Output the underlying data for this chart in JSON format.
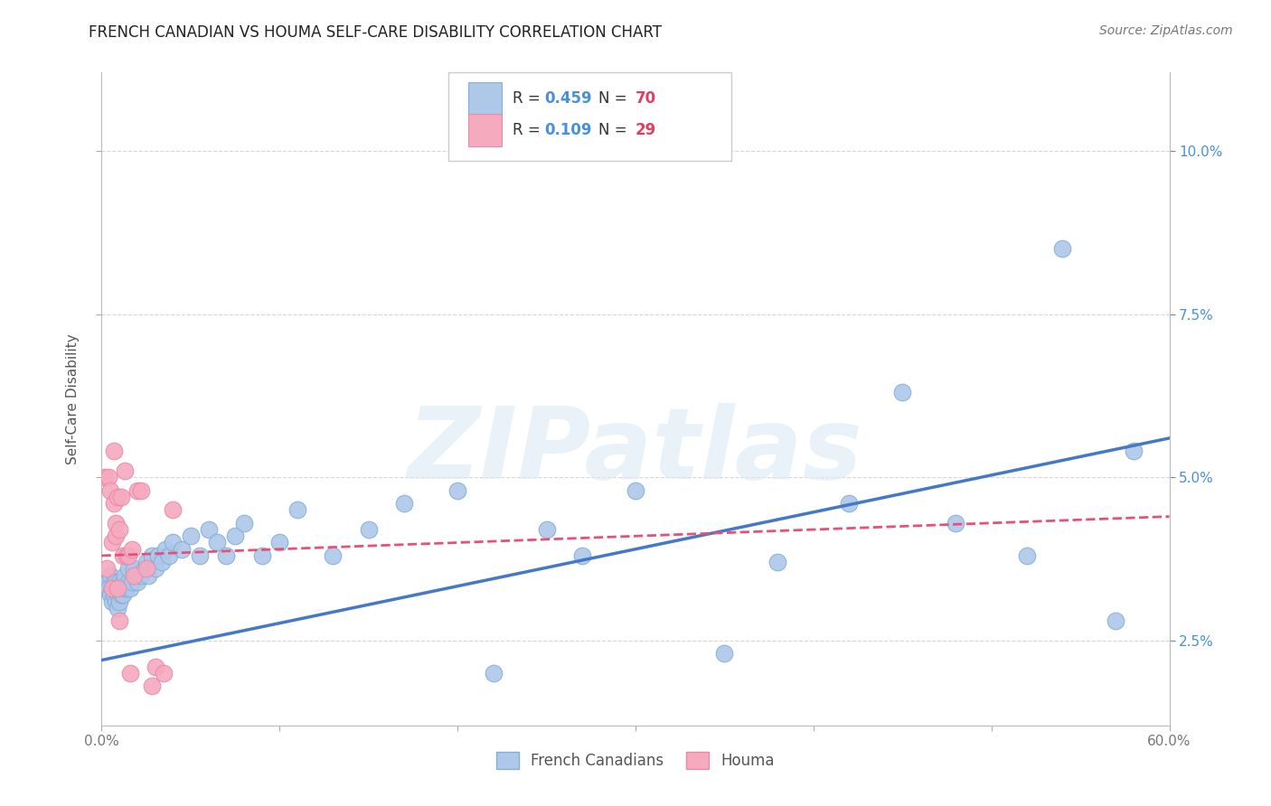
{
  "title": "FRENCH CANADIAN VS HOUMA SELF-CARE DISABILITY CORRELATION CHART",
  "source": "Source: ZipAtlas.com",
  "ylabel": "Self-Care Disability",
  "xlim": [
    0.0,
    0.6
  ],
  "ylim": [
    0.012,
    0.112
  ],
  "xticks": [
    0.0,
    0.1,
    0.2,
    0.3,
    0.4,
    0.5,
    0.6
  ],
  "xticklabels": [
    "0.0%",
    "",
    "",
    "",
    "",
    "",
    "60.0%"
  ],
  "yticks": [
    0.025,
    0.05,
    0.075,
    0.1
  ],
  "yticklabels": [
    "2.5%",
    "5.0%",
    "7.5%",
    "10.0%"
  ],
  "blue_R": "0.459",
  "blue_N": "70",
  "pink_R": "0.109",
  "pink_N": "29",
  "blue_label": "French Canadians",
  "pink_label": "Houma",
  "blue_color": "#adc8e8",
  "pink_color": "#f5aabe",
  "blue_edge": "#85afd8",
  "pink_edge": "#e88aaa",
  "blue_line_color": "#4478c8",
  "pink_line_color": "#e8507a",
  "blue_scatter_x": [
    0.002,
    0.003,
    0.004,
    0.005,
    0.005,
    0.006,
    0.006,
    0.007,
    0.007,
    0.008,
    0.008,
    0.008,
    0.009,
    0.009,
    0.01,
    0.01,
    0.01,
    0.011,
    0.011,
    0.012,
    0.012,
    0.013,
    0.013,
    0.014,
    0.015,
    0.015,
    0.016,
    0.017,
    0.018,
    0.019,
    0.02,
    0.022,
    0.024,
    0.025,
    0.026,
    0.028,
    0.03,
    0.032,
    0.034,
    0.036,
    0.038,
    0.04,
    0.045,
    0.05,
    0.055,
    0.06,
    0.065,
    0.07,
    0.075,
    0.08,
    0.09,
    0.1,
    0.11,
    0.13,
    0.15,
    0.17,
    0.2,
    0.22,
    0.25,
    0.27,
    0.3,
    0.35,
    0.38,
    0.42,
    0.45,
    0.48,
    0.52,
    0.54,
    0.57,
    0.58
  ],
  "blue_scatter_y": [
    0.033,
    0.034,
    0.033,
    0.032,
    0.035,
    0.031,
    0.033,
    0.032,
    0.034,
    0.031,
    0.033,
    0.034,
    0.03,
    0.032,
    0.033,
    0.031,
    0.034,
    0.032,
    0.033,
    0.034,
    0.032,
    0.033,
    0.035,
    0.033,
    0.034,
    0.036,
    0.033,
    0.034,
    0.036,
    0.035,
    0.034,
    0.035,
    0.036,
    0.037,
    0.035,
    0.038,
    0.036,
    0.038,
    0.037,
    0.039,
    0.038,
    0.04,
    0.039,
    0.041,
    0.038,
    0.042,
    0.04,
    0.038,
    0.041,
    0.043,
    0.038,
    0.04,
    0.045,
    0.038,
    0.042,
    0.046,
    0.048,
    0.02,
    0.042,
    0.038,
    0.048,
    0.023,
    0.037,
    0.046,
    0.063,
    0.043,
    0.038,
    0.085,
    0.028,
    0.054
  ],
  "pink_scatter_x": [
    0.002,
    0.003,
    0.004,
    0.005,
    0.006,
    0.006,
    0.007,
    0.007,
    0.008,
    0.008,
    0.009,
    0.009,
    0.01,
    0.01,
    0.011,
    0.012,
    0.013,
    0.014,
    0.015,
    0.016,
    0.017,
    0.018,
    0.02,
    0.022,
    0.025,
    0.028,
    0.03,
    0.035,
    0.04
  ],
  "pink_scatter_y": [
    0.05,
    0.036,
    0.05,
    0.048,
    0.04,
    0.033,
    0.046,
    0.054,
    0.041,
    0.043,
    0.047,
    0.033,
    0.042,
    0.028,
    0.047,
    0.038,
    0.051,
    0.038,
    0.038,
    0.02,
    0.039,
    0.035,
    0.048,
    0.048,
    0.036,
    0.018,
    0.021,
    0.02,
    0.045
  ],
  "blue_line_x0": 0.0,
  "blue_line_y0": 0.022,
  "blue_line_x1": 0.6,
  "blue_line_y1": 0.056,
  "pink_line_x0": 0.0,
  "pink_line_x1": 0.6,
  "pink_line_y0": 0.038,
  "pink_line_y1": 0.044,
  "title_fontsize": 12,
  "axis_label_fontsize": 11,
  "tick_fontsize": 11,
  "legend_fontsize": 12,
  "source_fontsize": 10,
  "background_color": "#ffffff",
  "grid_color": "#cccccc",
  "grid_style": "--",
  "grid_alpha": 0.8,
  "title_color": "#222222",
  "axis_label_color": "#555555",
  "tick_color": "#777777",
  "legend_R_color": "#4a90d9",
  "legend_N_color": "#e04060",
  "right_tick_color": "#4a90d9",
  "watermark_text": "ZIPatlas",
  "watermark_color": "#ddeaf5",
  "watermark_alpha": 0.6,
  "watermark_fontsize": 80
}
